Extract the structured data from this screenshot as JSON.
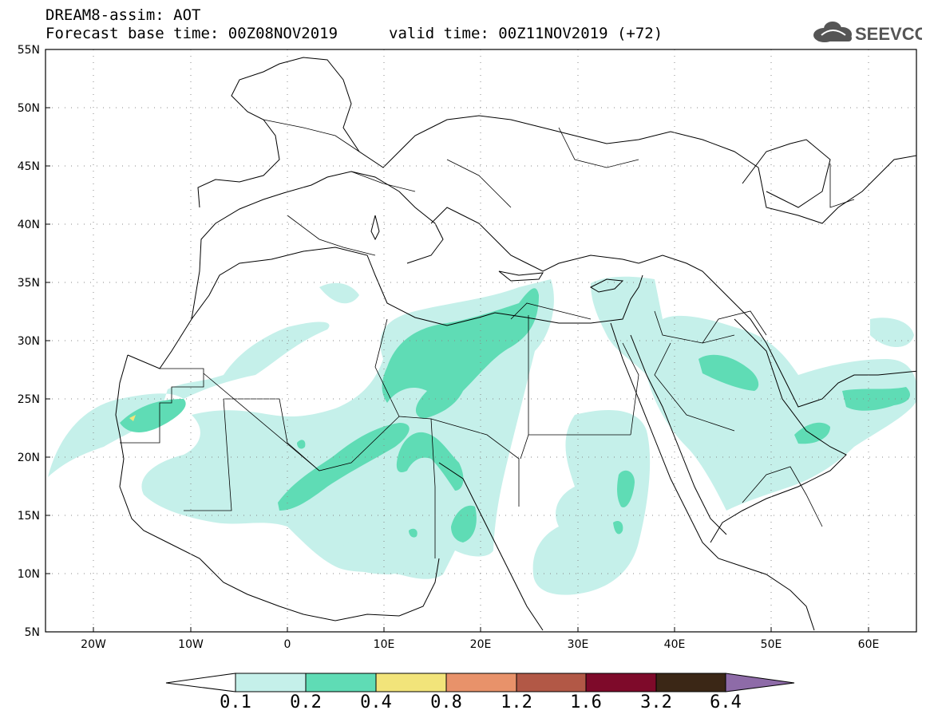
{
  "header": {
    "title": "DREAM8-assim: AOT",
    "base_time": "Forecast base time: 00Z08NOV2019",
    "valid_time": "valid time: 00Z11NOV2019 (+72)"
  },
  "logo": {
    "text": "SEEVCCC",
    "icon": "cloud-icon"
  },
  "map": {
    "lat_ticks": [
      "55N",
      "50N",
      "45N",
      "40N",
      "35N",
      "30N",
      "25N",
      "20N",
      "15N",
      "10N",
      "5N"
    ],
    "lon_ticks": [
      "20W",
      "10W",
      "0",
      "10E",
      "20E",
      "30E",
      "40E",
      "50E",
      "60E"
    ],
    "lat_range": [
      5,
      55
    ],
    "lon_range": [
      -25,
      65
    ]
  },
  "colorbar": {
    "labels": [
      "0.1",
      "0.2",
      "0.4",
      "0.8",
      "1.2",
      "1.6",
      "3.2",
      "6.4"
    ],
    "colors": [
      "#ffffff",
      "#c5f0ea",
      "#5fdcb5",
      "#f2e47a",
      "#e8926a",
      "#b25846",
      "#7e0a2a",
      "#3b2716",
      "#8e6ba8"
    ]
  }
}
